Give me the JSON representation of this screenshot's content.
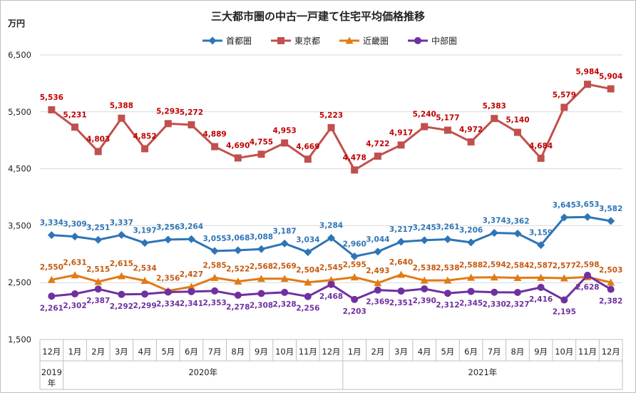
{
  "chart_data": {
    "type": "line",
    "title": "三大都市圏の中古一戸建て住宅平均価格推移",
    "unit_label": "万円",
    "ylim": [
      1500,
      6500
    ],
    "yticks": [
      1500,
      2500,
      3500,
      4500,
      5500,
      6500
    ],
    "ytick_labels": [
      "1,500",
      "2,500",
      "3,500",
      "4,500",
      "5,500",
      "6,500"
    ],
    "grid": true,
    "legend_position": "top",
    "categories": [
      "12月",
      "1月",
      "2月",
      "3月",
      "4月",
      "5月",
      "6月",
      "7月",
      "8月",
      "9月",
      "10月",
      "11月",
      "12月",
      "1月",
      "2月",
      "3月",
      "4月",
      "5月",
      "6月",
      "7月",
      "8月",
      "9月",
      "10月",
      "11月",
      "12月"
    ],
    "year_groups": [
      {
        "label": "2019年",
        "count": 1
      },
      {
        "label": "2020年",
        "count": 12
      },
      {
        "label": "2021年",
        "count": 12
      }
    ],
    "series": [
      {
        "name": "首都圏",
        "color": "#2e75b6",
        "label_color": "#2e75b6",
        "marker": "diamond",
        "label_pos": "above",
        "values": [
          3334,
          3309,
          3251,
          3337,
          3197,
          3256,
          3264,
          3055,
          3068,
          3088,
          3187,
          3034,
          3284,
          2960,
          3044,
          3217,
          3245,
          3261,
          3206,
          3374,
          3362,
          3159,
          3645,
          3653,
          3582
        ],
        "labels": [
          "3,334",
          "3,309",
          "3,251",
          "3,337",
          "3,197",
          "3,256",
          "3,264",
          "3,055",
          "3,068",
          "3,088",
          "3,187",
          "3,034",
          "3,284",
          "2,960",
          "3,044",
          "3,217",
          "3,245",
          "3,261",
          "3,206",
          "3,374",
          "3,362",
          "3,159",
          "3,645",
          "3,653",
          "3,582"
        ]
      },
      {
        "name": "東京都",
        "color": "#c0504d",
        "label_color": "#c00000",
        "marker": "square",
        "label_pos": "above",
        "values": [
          5536,
          5231,
          4803,
          5388,
          4852,
          5293,
          5272,
          4889,
          4690,
          4755,
          4953,
          4669,
          5223,
          4478,
          4722,
          4917,
          5240,
          5177,
          4972,
          5383,
          5140,
          4684,
          5579,
          5984,
          5904
        ],
        "labels": [
          "5,536",
          "5,231",
          "4,803",
          "5,388",
          "4,852",
          "5,293",
          "5,272",
          "4,889",
          "4,690",
          "4,755",
          "4,953",
          "4,669",
          "5,223",
          "4,478",
          "4,722",
          "4,917",
          "5,240",
          "5,177",
          "4,972",
          "5,383",
          "5,140",
          "4,684",
          "5,579",
          "5,984",
          "5,904"
        ]
      },
      {
        "name": "近畿圏",
        "color": "#e07b16",
        "label_color": "#c55a11",
        "marker": "triangle",
        "label_pos": "above",
        "values": [
          2550,
          2631,
          2515,
          2615,
          2534,
          2356,
          2427,
          2585,
          2522,
          2568,
          2569,
          2504,
          2545,
          2595,
          2493,
          2640,
          2538,
          2538,
          2588,
          2594,
          2584,
          2587,
          2577,
          2598,
          2503
        ],
        "labels": [
          "2,550",
          "2,631",
          "2,515",
          "2,615",
          "2,534",
          "2,356",
          "2,427",
          "2,585",
          "2,522",
          "2,568",
          "2,569",
          "2,504",
          "2,545",
          "2,595",
          "2,493",
          "2,640",
          "2,538",
          "2,538",
          "2,588",
          "2,594",
          "2,584",
          "2,587",
          "2,577",
          "2,598",
          "2,503"
        ]
      },
      {
        "name": "中部圏",
        "color": "#7030a0",
        "label_color": "#7030a0",
        "marker": "circle",
        "label_pos": "below",
        "values": [
          2261,
          2302,
          2387,
          2292,
          2299,
          2334,
          2341,
          2353,
          2278,
          2308,
          2328,
          2256,
          2468,
          2203,
          2369,
          2351,
          2390,
          2312,
          2345,
          2330,
          2327,
          2416,
          2195,
          2628,
          2382
        ],
        "labels": [
          "2,261",
          "2,302",
          "2,387",
          "2,292",
          "2,299",
          "2,334",
          "2,341",
          "2,353",
          "2,278",
          "2,308",
          "2,328",
          "2,256",
          "2,468",
          "2,203",
          "2,369",
          "2,351",
          "2,390",
          "2,312",
          "2,345",
          "2,330",
          "2,327",
          "2,416",
          "2,195",
          "2,628",
          "2,382"
        ]
      }
    ]
  }
}
